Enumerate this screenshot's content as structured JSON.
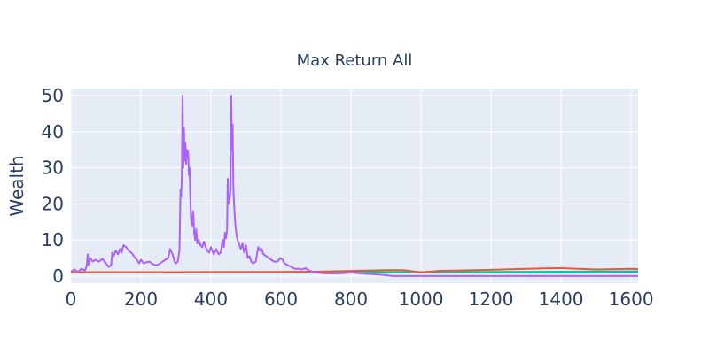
{
  "chart_data": {
    "type": "line",
    "title": "Max Return All",
    "xlabel": "",
    "ylabel": "Wealth",
    "xlim": [
      0,
      1620
    ],
    "ylim": [
      -2,
      52
    ],
    "x_ticks": [
      0,
      200,
      400,
      600,
      800,
      1000,
      1200,
      1400,
      1600
    ],
    "y_ticks": [
      0,
      10,
      20,
      30,
      40,
      50
    ],
    "grid": true,
    "legend": "none",
    "colors": {
      "plot_bg": "#e5ecf6",
      "grid": "#ffffff",
      "text": "#2a3f5f",
      "series": [
        "#ab63fa",
        "#ef553b",
        "#00cc96",
        "#636efa"
      ]
    },
    "series": [
      {
        "values": [
          [
            0,
            1.2
          ],
          [
            10,
            1.8
          ],
          [
            20,
            1.1
          ],
          [
            30,
            2.0
          ],
          [
            40,
            1.5
          ],
          [
            45,
            2.8
          ],
          [
            48,
            6.0
          ],
          [
            50,
            3.0
          ],
          [
            55,
            5.0
          ],
          [
            62,
            4.0
          ],
          [
            70,
            4.5
          ],
          [
            80,
            4.0
          ],
          [
            90,
            4.8
          ],
          [
            100,
            3.5
          ],
          [
            108,
            2.5
          ],
          [
            115,
            3.0
          ],
          [
            118,
            6.5
          ],
          [
            122,
            5.5
          ],
          [
            128,
            7.0
          ],
          [
            135,
            6.0
          ],
          [
            140,
            7.5
          ],
          [
            145,
            6.5
          ],
          [
            150,
            8.5
          ],
          [
            158,
            8.0
          ],
          [
            165,
            7.0
          ],
          [
            172,
            6.5
          ],
          [
            180,
            5.5
          ],
          [
            188,
            4.5
          ],
          [
            195,
            3.5
          ],
          [
            200,
            4.5
          ],
          [
            208,
            3.5
          ],
          [
            215,
            3.8
          ],
          [
            225,
            4.0
          ],
          [
            235,
            3.2
          ],
          [
            245,
            3.0
          ],
          [
            255,
            3.5
          ],
          [
            262,
            4.0
          ],
          [
            270,
            4.5
          ],
          [
            278,
            5.0
          ],
          [
            283,
            7.5
          ],
          [
            288,
            6.5
          ],
          [
            292,
            5.5
          ],
          [
            296,
            4.0
          ],
          [
            300,
            3.5
          ],
          [
            305,
            4.0
          ],
          [
            310,
            7.0
          ],
          [
            313,
            24.0
          ],
          [
            315,
            22.0
          ],
          [
            317,
            28.0
          ],
          [
            319,
            50.0
          ],
          [
            321,
            30.0
          ],
          [
            323,
            41.0
          ],
          [
            325,
            32.0
          ],
          [
            327,
            37.0
          ],
          [
            329,
            31.0
          ],
          [
            331,
            35.0
          ],
          [
            333,
            33.0
          ],
          [
            335,
            34.5
          ],
          [
            337,
            28.0
          ],
          [
            339,
            30.0
          ],
          [
            341,
            22.0
          ],
          [
            343,
            16.0
          ],
          [
            346,
            14.0
          ],
          [
            349,
            18.0
          ],
          [
            352,
            12.0
          ],
          [
            355,
            10.0
          ],
          [
            358,
            13.0
          ],
          [
            361,
            9.0
          ],
          [
            365,
            10.0
          ],
          [
            370,
            8.5
          ],
          [
            375,
            8.0
          ],
          [
            380,
            9.5
          ],
          [
            385,
            8.0
          ],
          [
            390,
            7.0
          ],
          [
            395,
            6.5
          ],
          [
            400,
            8.0
          ],
          [
            408,
            6.0
          ],
          [
            415,
            7.5
          ],
          [
            422,
            6.0
          ],
          [
            428,
            6.5
          ],
          [
            433,
            10.0
          ],
          [
            437,
            8.0
          ],
          [
            440,
            12.0
          ],
          [
            443,
            10.5
          ],
          [
            446,
            13.0
          ],
          [
            448,
            27.0
          ],
          [
            450,
            20.0
          ],
          [
            452,
            21.0
          ],
          [
            454,
            22.0
          ],
          [
            456,
            24.0
          ],
          [
            458,
            50.0
          ],
          [
            460,
            35.0
          ],
          [
            462,
            42.0
          ],
          [
            464,
            25.0
          ],
          [
            466,
            20.0
          ],
          [
            469,
            15.0
          ],
          [
            472,
            12.0
          ],
          [
            476,
            10.0
          ],
          [
            480,
            9.0
          ],
          [
            485,
            7.5
          ],
          [
            490,
            9.0
          ],
          [
            495,
            6.5
          ],
          [
            500,
            8.5
          ],
          [
            505,
            5.0
          ],
          [
            510,
            5.5
          ],
          [
            515,
            4.0
          ],
          [
            520,
            3.5
          ],
          [
            528,
            4.0
          ],
          [
            535,
            8.0
          ],
          [
            540,
            7.0
          ],
          [
            545,
            7.5
          ],
          [
            550,
            6.0
          ],
          [
            558,
            5.5
          ],
          [
            565,
            5.0
          ],
          [
            572,
            4.5
          ],
          [
            580,
            4.0
          ],
          [
            590,
            4.0
          ],
          [
            598,
            5.0
          ],
          [
            605,
            4.5
          ],
          [
            610,
            3.5
          ],
          [
            620,
            3.0
          ],
          [
            630,
            2.5
          ],
          [
            640,
            2.0
          ],
          [
            650,
            2.0
          ],
          [
            660,
            1.8
          ],
          [
            670,
            2.2
          ],
          [
            680,
            1.5
          ],
          [
            690,
            1.2
          ],
          [
            700,
            1.0
          ],
          [
            720,
            0.8
          ],
          [
            740,
            0.7
          ],
          [
            760,
            0.7
          ],
          [
            780,
            0.8
          ],
          [
            800,
            1.0
          ],
          [
            820,
            0.8
          ],
          [
            840,
            0.6
          ],
          [
            860,
            0.5
          ],
          [
            880,
            0.4
          ],
          [
            900,
            0.2
          ],
          [
            920,
            0.0
          ],
          [
            950,
            0.0
          ],
          [
            1000,
            0.0
          ],
          [
            1100,
            0.0
          ],
          [
            1200,
            0.0
          ],
          [
            1300,
            0.0
          ],
          [
            1400,
            0.0
          ],
          [
            1500,
            0.0
          ],
          [
            1620,
            0.0
          ]
        ]
      },
      {
        "values": [
          [
            0,
            1.0
          ],
          [
            200,
            1.05
          ],
          [
            400,
            1.1
          ],
          [
            600,
            1.15
          ],
          [
            700,
            1.2
          ],
          [
            800,
            1.4
          ],
          [
            900,
            1.6
          ],
          [
            950,
            1.6
          ],
          [
            1000,
            1.0
          ],
          [
            1050,
            1.4
          ],
          [
            1100,
            1.5
          ],
          [
            1200,
            1.7
          ],
          [
            1300,
            2.0
          ],
          [
            1350,
            2.1
          ],
          [
            1400,
            2.2
          ],
          [
            1450,
            2.0
          ],
          [
            1500,
            1.8
          ],
          [
            1550,
            1.9
          ],
          [
            1600,
            2.0
          ],
          [
            1620,
            1.9
          ]
        ]
      },
      {
        "values": [
          [
            0,
            1.0
          ],
          [
            200,
            1.02
          ],
          [
            400,
            1.05
          ],
          [
            600,
            1.08
          ],
          [
            800,
            1.1
          ],
          [
            1000,
            1.1
          ],
          [
            1200,
            1.15
          ],
          [
            1400,
            1.2
          ],
          [
            1600,
            1.3
          ],
          [
            1620,
            1.3
          ]
        ]
      },
      {
        "values": [
          [
            0,
            1.0
          ],
          [
            400,
            1.0
          ],
          [
            800,
            1.0
          ],
          [
            1200,
            1.0
          ],
          [
            1620,
            1.0
          ]
        ]
      }
    ]
  }
}
